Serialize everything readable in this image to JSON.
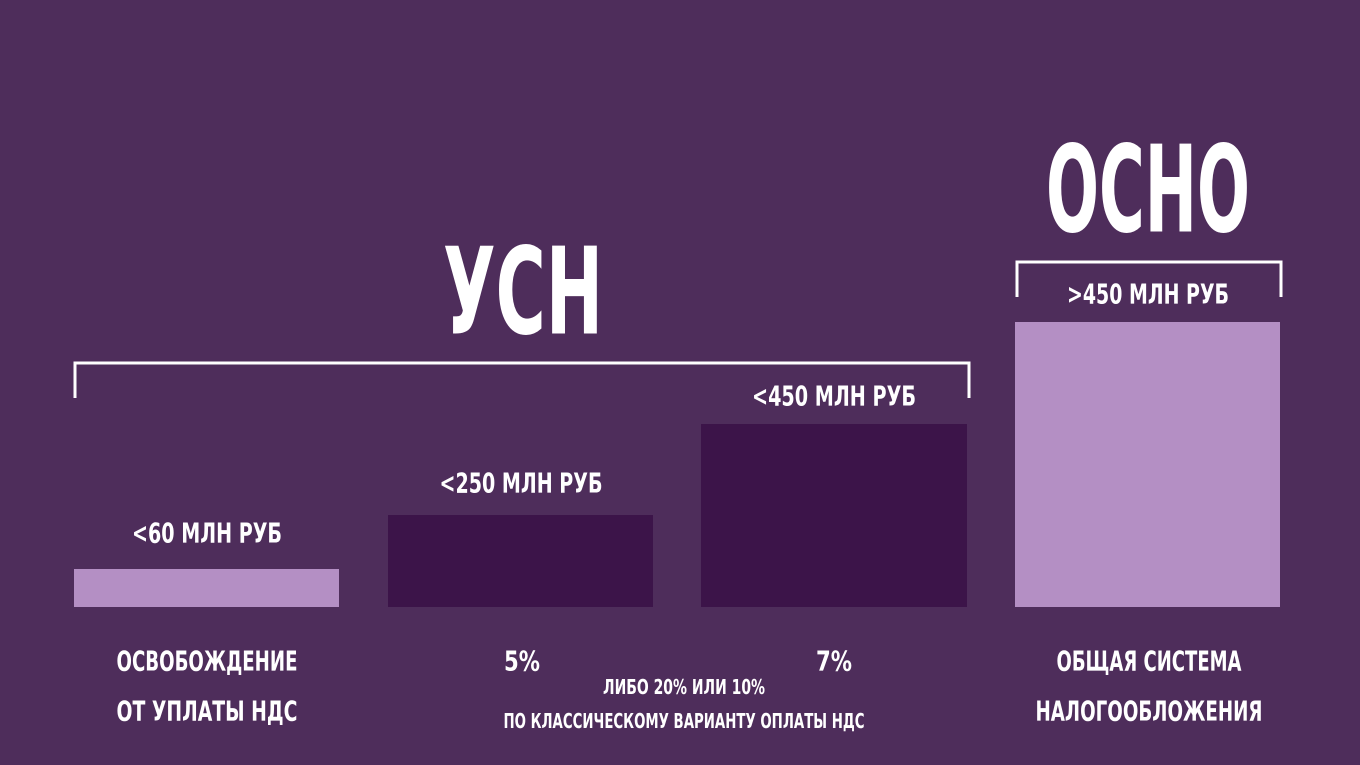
{
  "usn": {
    "title": "УСН"
  },
  "osno": {
    "title": "ОСНО"
  },
  "bars": [
    {
      "limit": "<60 МЛН РУБ",
      "caption": [
        "ОСВОБОЖДЕНИЕ",
        "ОТ УПЛАТЫ НДС"
      ]
    },
    {
      "limit": "<250 МЛН РУБ",
      "caption": [
        "5%"
      ]
    },
    {
      "limit": "<450 МЛН РУБ",
      "caption": [
        "7%"
      ]
    },
    {
      "limit": ">450 МЛН РУБ",
      "caption": [
        "ОБЩАЯ СИСТЕМА",
        "НАЛОГООБЛОЖЕНИЯ"
      ]
    }
  ],
  "note": [
    "ЛИБО 20% ИЛИ 10%",
    "ПО КЛАССИЧЕСКОМУ ВАРИАНТУ ОПЛАТЫ НДС"
  ]
}
